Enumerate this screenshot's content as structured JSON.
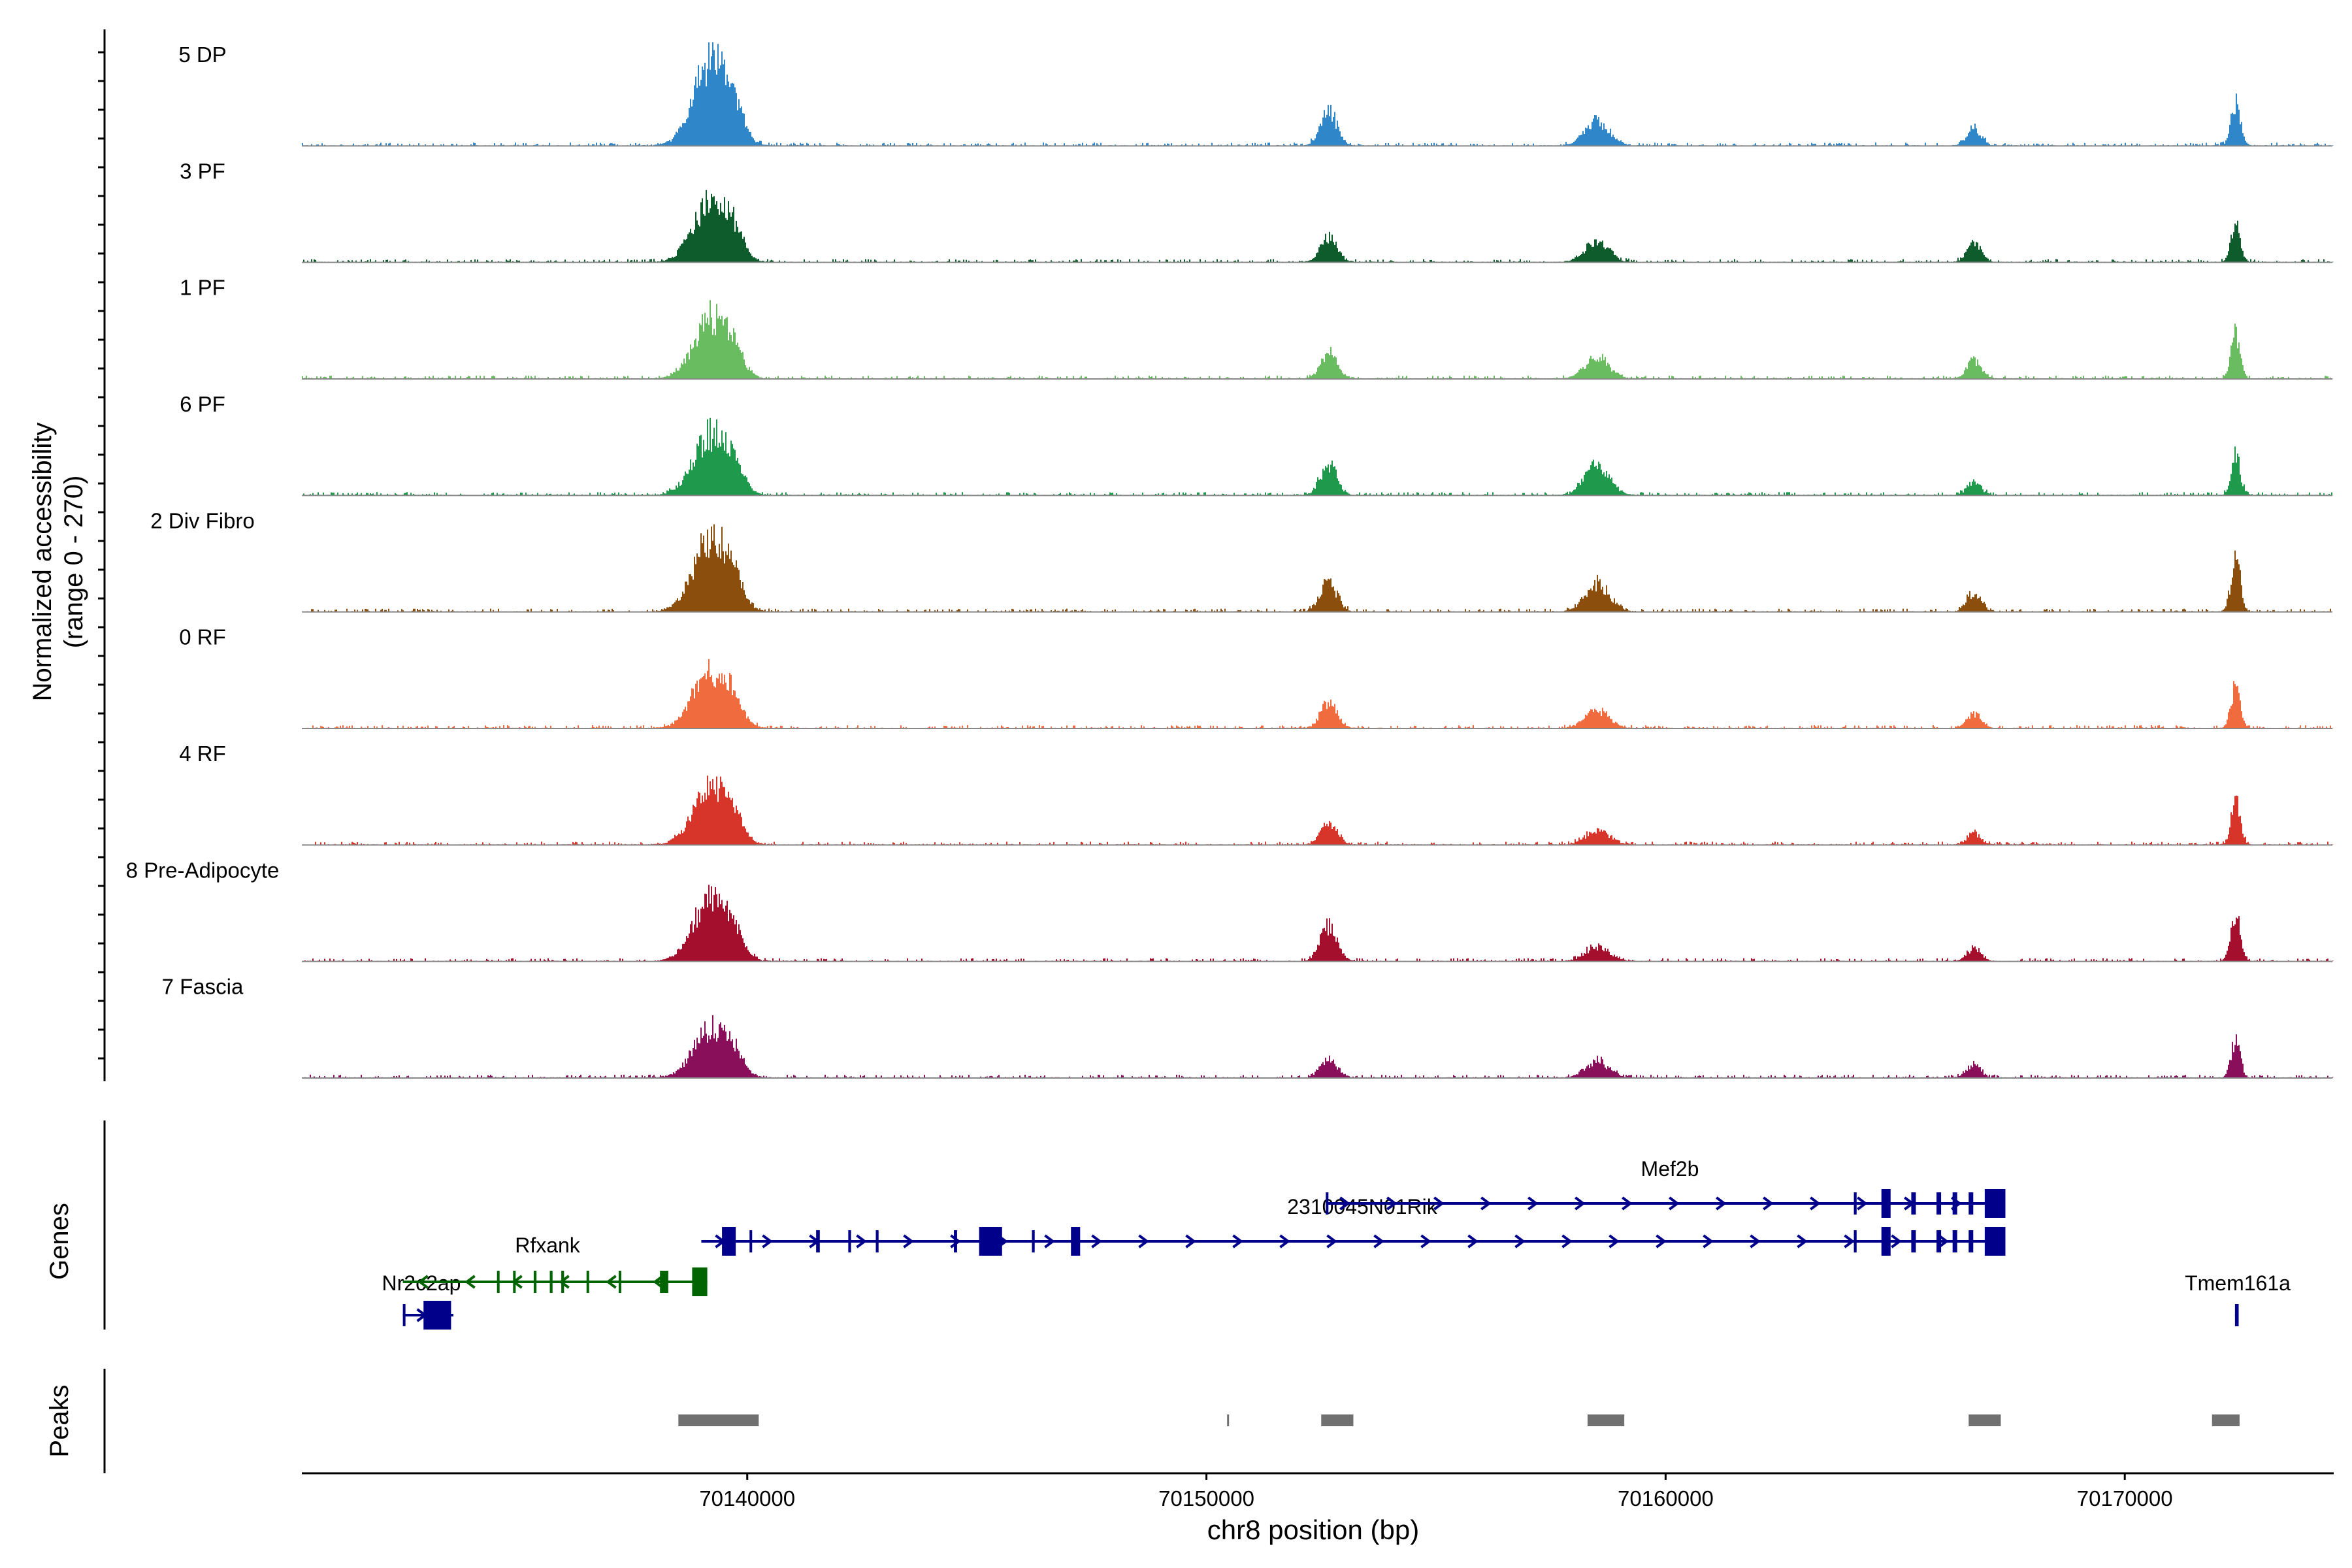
{
  "chart_data": {
    "type": "area",
    "title": "",
    "ylabel": "Normalized accessibility",
    "ylabel_range": "(range 0 - 270)",
    "xlabel": "chr8 position (bp)",
    "xlim": [
      70130300,
      70174550
    ],
    "ylim": [
      0,
      270
    ],
    "x_ticks": [
      70140000,
      70150000,
      70160000,
      70170000
    ],
    "x_tick_labels": [
      "70140000",
      "70150000",
      "70160000",
      "70170000"
    ],
    "baseline_noise": 8,
    "peak_shape_min": [
      [
        70139200,
        100,
        380
      ],
      [
        70139700,
        26,
        200
      ],
      [
        70152650,
        70,
        180
      ],
      [
        70158500,
        40,
        260
      ],
      [
        70166700,
        42,
        150
      ],
      [
        70172400,
        95,
        100
      ]
    ],
    "series": [
      {
        "name": "5 DP",
        "color": "#2F86C8",
        "amplitudes": [
          255,
          75,
          105,
          75,
          55,
          125
        ]
      },
      {
        "name": "3 PF",
        "color": "#0E5C2C",
        "amplitudes": [
          190,
          55,
          80,
          60,
          60,
          120
        ]
      },
      {
        "name": "1 PF",
        "color": "#69BC5F",
        "amplitudes": [
          185,
          50,
          80,
          65,
          55,
          135
        ]
      },
      {
        "name": "6 PF",
        "color": "#1F9A4D",
        "amplitudes": [
          185,
          55,
          95,
          95,
          40,
          125
        ]
      },
      {
        "name": "2 Div Fibro",
        "color": "#8B4E0D",
        "amplitudes": [
          225,
          50,
          90,
          85,
          60,
          160
        ]
      },
      {
        "name": "0 RF",
        "color": "#F06B3E",
        "amplitudes": [
          170,
          45,
          80,
          55,
          45,
          130
        ]
      },
      {
        "name": "4 RF",
        "color": "#D7342A",
        "amplitudes": [
          175,
          55,
          65,
          40,
          35,
          130
        ]
      },
      {
        "name": "8 Pre-Adipocyte",
        "color": "#A50F2E",
        "amplitudes": [
          195,
          45,
          110,
          45,
          40,
          150
        ]
      },
      {
        "name": "7 Fascia",
        "color": "#8A0F5A",
        "amplitudes": [
          150,
          40,
          60,
          50,
          40,
          115
        ]
      }
    ],
    "genes_label": "Genes",
    "peaks_label": "Peaks",
    "genes": [
      {
        "name": "Nr2c2ap",
        "color": "#00008B",
        "strand": "+",
        "start": 70132500,
        "end": 70133600,
        "row": 3,
        "exons": [
          [
            70132500,
            70132520
          ],
          [
            70132950,
            70133550
          ]
        ]
      },
      {
        "name": "Rfxank",
        "color": "#006400",
        "strand": "-",
        "start": 70132500,
        "end": 70139130,
        "row": 2,
        "exons": [
          [
            70134550,
            70134580
          ],
          [
            70134900,
            70134940
          ],
          [
            70135350,
            70135410
          ],
          [
            70135700,
            70135760
          ],
          [
            70135950,
            70136010
          ],
          [
            70136500,
            70136540
          ],
          [
            70137200,
            70137230
          ],
          [
            70138100,
            70138280
          ],
          [
            70138800,
            70139130
          ]
        ]
      },
      {
        "name": "2310045N01Rik",
        "color": "#00008B",
        "strand": "+",
        "start": 70139000,
        "end": 70167400,
        "row": 1,
        "exons": [
          [
            70139450,
            70139750
          ],
          [
            70140050,
            70140100
          ],
          [
            70141500,
            70141580
          ],
          [
            70142200,
            70142260
          ],
          [
            70142800,
            70142860
          ],
          [
            70144500,
            70144570
          ],
          [
            70145050,
            70145550
          ],
          [
            70146200,
            70146260
          ],
          [
            70147050,
            70147250
          ],
          [
            70164100,
            70164160
          ],
          [
            70164700,
            70164900
          ],
          [
            70165350,
            70165450
          ],
          [
            70165900,
            70166000
          ],
          [
            70166250,
            70166350
          ],
          [
            70166600,
            70166700
          ],
          [
            70166950,
            70167400
          ]
        ]
      },
      {
        "name": "Mef2b",
        "color": "#00008B",
        "strand": "+",
        "start": 70152600,
        "end": 70167400,
        "row": 0,
        "exons": [
          [
            70152600,
            70152640
          ],
          [
            70164100,
            70164160
          ],
          [
            70164700,
            70164900
          ],
          [
            70165350,
            70165450
          ],
          [
            70165900,
            70166000
          ],
          [
            70166250,
            70166350
          ],
          [
            70166600,
            70166700
          ],
          [
            70166950,
            70167400
          ]
        ]
      },
      {
        "name": "Tmem161a",
        "color": "#00008B",
        "strand": "+",
        "start": 70172400,
        "end": 70172480,
        "row": 3,
        "exons": [
          [
            70172400,
            70172480
          ]
        ]
      }
    ],
    "peaks": [
      [
        70138500,
        70140250
      ],
      [
        70150450,
        70150480
      ],
      [
        70152500,
        70153200
      ],
      [
        70158300,
        70159100
      ],
      [
        70166600,
        70167300
      ],
      [
        70171900,
        70172500
      ]
    ]
  }
}
